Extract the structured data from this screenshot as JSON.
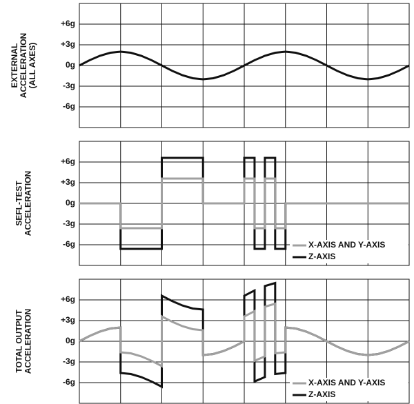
{
  "chart_data": [
    {
      "type": "line",
      "ylabel": [
        "EXTERNAL",
        "ACCELERATION",
        "(ALL AXES)"
      ],
      "xlim": [
        0,
        8
      ],
      "xticks": [
        1,
        2,
        3,
        4,
        5,
        6,
        7
      ],
      "ylim": [
        -9,
        9
      ],
      "yticks": [
        {
          "value": 6,
          "label": "+6g"
        },
        {
          "value": 3,
          "label": "+3g"
        },
        {
          "value": 0,
          "label": "0g"
        },
        {
          "value": -3,
          "label": "-3g"
        },
        {
          "value": -6,
          "label": "-6g"
        }
      ],
      "grid": true,
      "series": [
        {
          "color": "#111111",
          "x": [
            0,
            0.25,
            0.5,
            0.75,
            1,
            1.25,
            1.5,
            1.75,
            2,
            2.25,
            2.5,
            2.75,
            3,
            3.25,
            3.5,
            3.75,
            4,
            4.25,
            4.5,
            4.75,
            5,
            5.25,
            5.5,
            5.75,
            6,
            6.25,
            6.5,
            6.75,
            7,
            7.25,
            7.5,
            7.75,
            8
          ],
          "values": [
            0,
            0.77,
            1.41,
            1.85,
            2,
            1.85,
            1.41,
            0.77,
            0,
            -0.77,
            -1.41,
            -1.85,
            -2,
            -1.85,
            -1.41,
            -0.77,
            0,
            0.77,
            1.41,
            1.85,
            2,
            1.85,
            1.41,
            0.77,
            0,
            -0.77,
            -1.41,
            -1.85,
            -2,
            -1.85,
            -1.41,
            -0.77,
            0
          ]
        }
      ]
    },
    {
      "type": "line",
      "ylabel": [
        "SEFL-TEST",
        "ACCELERATION"
      ],
      "xlim": [
        0,
        8
      ],
      "xticks": [
        1,
        2,
        3,
        4,
        5,
        6,
        7
      ],
      "ylim": [
        -9,
        9
      ],
      "yticks": [
        {
          "value": 6,
          "label": "+6g"
        },
        {
          "value": 3,
          "label": "+3g"
        },
        {
          "value": 0,
          "label": "0g"
        },
        {
          "value": -3,
          "label": "-3g"
        },
        {
          "value": -6,
          "label": "-6g"
        }
      ],
      "grid": true,
      "legend": "lower right",
      "series": [
        {
          "name": "Z-AXIS",
          "color": "#111111",
          "x": [
            0,
            1,
            1,
            2,
            2,
            3,
            3,
            4,
            4,
            4.25,
            4.25,
            4.5,
            4.5,
            4.75,
            4.75,
            5,
            5,
            8
          ],
          "values": [
            0,
            0,
            -6.6,
            -6.6,
            6.6,
            6.6,
            0,
            0,
            6.6,
            6.6,
            -6.6,
            -6.6,
            6.6,
            6.6,
            -6.6,
            -6.6,
            0,
            0
          ]
        },
        {
          "name": "X-AXIS AND Y-AXIS",
          "color": "#a0a0a0",
          "x": [
            0,
            1,
            1,
            2,
            2,
            3,
            3,
            4,
            4,
            4.25,
            4.25,
            4.5,
            4.5,
            4.75,
            4.75,
            5,
            5,
            8
          ],
          "values": [
            0,
            0,
            -3.6,
            -3.6,
            3.6,
            3.6,
            0,
            0,
            3.6,
            3.6,
            -3.6,
            -3.6,
            3.6,
            3.6,
            -3.6,
            -3.6,
            0,
            0
          ]
        }
      ]
    },
    {
      "type": "line",
      "ylabel": [
        "TOTAL OUTPUT",
        "ACCELERATION"
      ],
      "xlim": [
        0,
        8
      ],
      "xticks": [
        1,
        2,
        3,
        4,
        5,
        6,
        7
      ],
      "ylim": [
        -9,
        9
      ],
      "yticks": [
        {
          "value": 6,
          "label": "+6g"
        },
        {
          "value": 3,
          "label": "+3g"
        },
        {
          "value": 0,
          "label": "0g"
        },
        {
          "value": -3,
          "label": "-3g"
        },
        {
          "value": -6,
          "label": "-6g"
        }
      ],
      "grid": true,
      "legend": "lower right",
      "series": [
        {
          "name": "Z-AXIS",
          "color": "#111111",
          "x": [
            0,
            0.25,
            0.5,
            0.75,
            1,
            1,
            1.25,
            1.5,
            1.75,
            2,
            2,
            2.25,
            2.5,
            2.75,
            3,
            3,
            3.25,
            3.5,
            3.75,
            4,
            4,
            4.25,
            4.25,
            4.5,
            4.5,
            4.75,
            4.75,
            5,
            5,
            5.25,
            5.5,
            5.75,
            6,
            6.25,
            6.5,
            6.75,
            7,
            7.25,
            7.5,
            7.75,
            8
          ],
          "values": [
            0,
            0.77,
            1.41,
            1.85,
            2,
            -4.6,
            -4.75,
            -5.19,
            -5.83,
            -6.6,
            6.6,
            5.83,
            5.19,
            4.75,
            4.6,
            -2,
            -1.85,
            -1.41,
            -0.77,
            0,
            6.6,
            7.37,
            -5.83,
            -5.19,
            8.01,
            8.45,
            -4.75,
            -4.6,
            2,
            1.85,
            1.41,
            0.77,
            0,
            -0.77,
            -1.41,
            -1.85,
            -2,
            -1.85,
            -1.41,
            -0.77,
            0
          ]
        },
        {
          "name": "X-AXIS AND Y-AXIS",
          "color": "#a0a0a0",
          "x": [
            0,
            0.25,
            0.5,
            0.75,
            1,
            1,
            1.25,
            1.5,
            1.75,
            2,
            2,
            2.25,
            2.5,
            2.75,
            3,
            3,
            3.25,
            3.5,
            3.75,
            4,
            4,
            4.25,
            4.25,
            4.5,
            4.5,
            4.75,
            4.75,
            5,
            5,
            5.25,
            5.5,
            5.75,
            6,
            6.25,
            6.5,
            6.75,
            7,
            7.25,
            7.5,
            7.75,
            8
          ],
          "values": [
            0,
            0.77,
            1.41,
            1.85,
            2,
            -1.6,
            -1.75,
            -2.19,
            -2.83,
            -3.6,
            3.6,
            2.83,
            2.19,
            1.75,
            1.6,
            -2,
            -1.85,
            -1.41,
            -0.77,
            0,
            3.6,
            4.37,
            -2.83,
            -2.19,
            5.01,
            5.45,
            -1.75,
            -1.6,
            2,
            1.85,
            1.41,
            0.77,
            0,
            -0.77,
            -1.41,
            -1.85,
            -2,
            -1.85,
            -1.41,
            -0.77,
            0
          ]
        }
      ]
    }
  ]
}
